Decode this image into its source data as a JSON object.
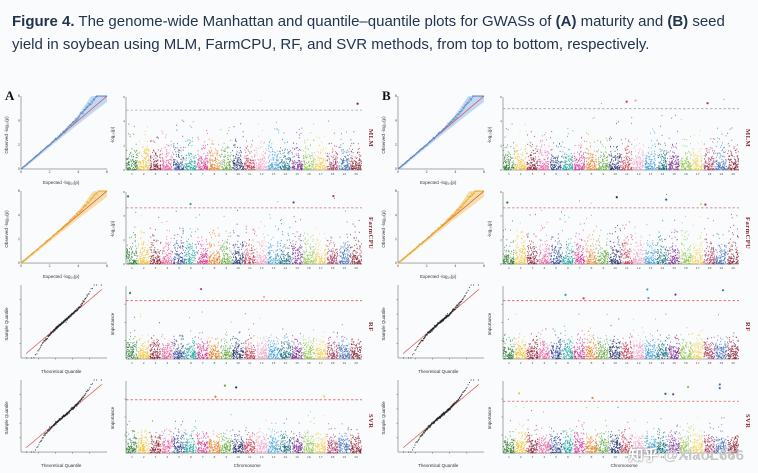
{
  "caption": {
    "fig_label": "Figure 4.",
    "s1": " The genome-wide Manhattan and quantile–quantile plots for GWASs of ",
    "a": "(A)",
    "s2": " maturity and ",
    "b": "(B)",
    "s3": " seed yield in soybean using MLM, FarmCPU, RF, and SVR methods, from top to bottom, respectively."
  },
  "manhattan": {
    "xlabel": "Chromosome",
    "chromosomes": [
      "1",
      "2",
      "3",
      "4",
      "5",
      "6",
      "7",
      "8",
      "9",
      "10",
      "11",
      "12",
      "13",
      "14",
      "15",
      "16",
      "17",
      "18",
      "19",
      "20"
    ],
    "palette": [
      "#2e7d32",
      "#f2c029",
      "#8c1d30",
      "#e85d9b",
      "#27408b",
      "#1fa39a",
      "#d5338f",
      "#e87d1e",
      "#66a83d",
      "#1d2a66",
      "#c23a50",
      "#f0a3c4",
      "#3fa0d8",
      "#156b7e",
      "#7a2f8f",
      "#8fc543",
      "#f2d152",
      "#a83a5c",
      "#3f6eb5",
      "#861f2f"
    ]
  },
  "panels": [
    {
      "label": "A",
      "rows": [
        {
          "method": "MLM",
          "qq": {
            "style": "fan",
            "color": "#4a7fc7",
            "band": "#a9c7ec",
            "curve": 0.35,
            "xlabel": "Expected  -log₁₀(p)",
            "ylabel": "Observed  -log₁₀(p)"
          },
          "man": {
            "style": "gwas",
            "ylabel": "-log₁₀(p)",
            "threshold": 0.82,
            "threshold_color": "#9a9a9a",
            "above": 1
          }
        },
        {
          "method": "FarmCPU",
          "qq": {
            "style": "fan",
            "color": "#e8a21f",
            "band": "#f3d184",
            "curve": 0.25,
            "xlabel": "Expected  -log₁₀(p)",
            "ylabel": "Observed  -log₁₀(p)"
          },
          "man": {
            "style": "gwas",
            "ylabel": "-log₁₀(p)",
            "threshold": 0.78,
            "threshold_color": "#c05858",
            "above": 4
          }
        },
        {
          "method": "RF",
          "qq": {
            "style": "scurve",
            "color": "#1c1c1c",
            "xlabel": "Theoretical Quantile",
            "ylabel": "Sample Quantile"
          },
          "man": {
            "style": "importance",
            "ylabel": "Importance",
            "threshold": 0.8,
            "threshold_color": "#e04040",
            "above": 3
          }
        },
        {
          "method": "SVR",
          "qq": {
            "style": "scurve",
            "color": "#1c1c1c",
            "xlabel": "Theoretical Quantile",
            "ylabel": "Sample Quantile"
          },
          "man": {
            "style": "importance",
            "ylabel": "Importance",
            "threshold": 0.74,
            "threshold_color": "#e04040",
            "above": 4
          }
        }
      ]
    },
    {
      "label": "B",
      "rows": [
        {
          "method": "MLM",
          "qq": {
            "style": "fan",
            "color": "#4a7fc7",
            "band": "#a9c7ec",
            "curve": 0.35,
            "xlabel": "Expected  -log₁₀(p)",
            "ylabel": "Observed  -log₁₀(p)"
          },
          "man": {
            "style": "gwas",
            "ylabel": "-log₁₀(p)",
            "threshold": 0.84,
            "threshold_color": "#9a9a9a",
            "above": 3
          }
        },
        {
          "method": "FarmCPU",
          "qq": {
            "style": "fan",
            "color": "#e8a21f",
            "band": "#f3d184",
            "curve": 0.28,
            "xlabel": "Expected  -log₁₀(p)",
            "ylabel": "Observed  -log₁₀(p)"
          },
          "man": {
            "style": "gwas",
            "ylabel": "-log₁₀(p)",
            "threshold": 0.78,
            "threshold_color": "#c05858",
            "above": 5
          }
        },
        {
          "method": "RF",
          "qq": {
            "style": "scurve",
            "color": "#1c1c1c",
            "xlabel": "Theoretical Quantile",
            "ylabel": "Sample Quantile"
          },
          "man": {
            "style": "importance",
            "ylabel": "Importance",
            "threshold": 0.8,
            "threshold_color": "#e04040",
            "above": 6
          }
        },
        {
          "method": "SVR",
          "qq": {
            "style": "scurve",
            "color": "#1c1c1c",
            "xlabel": "Theoretical Quantile",
            "ylabel": "Sample Quantile"
          },
          "man": {
            "style": "importance",
            "ylabel": "Importance",
            "threshold": 0.72,
            "threshold_color": "#e04040",
            "above": 7
          }
        }
      ]
    }
  ],
  "watermark": {
    "brand": "知乎",
    "handle": "@XiaoL666"
  }
}
